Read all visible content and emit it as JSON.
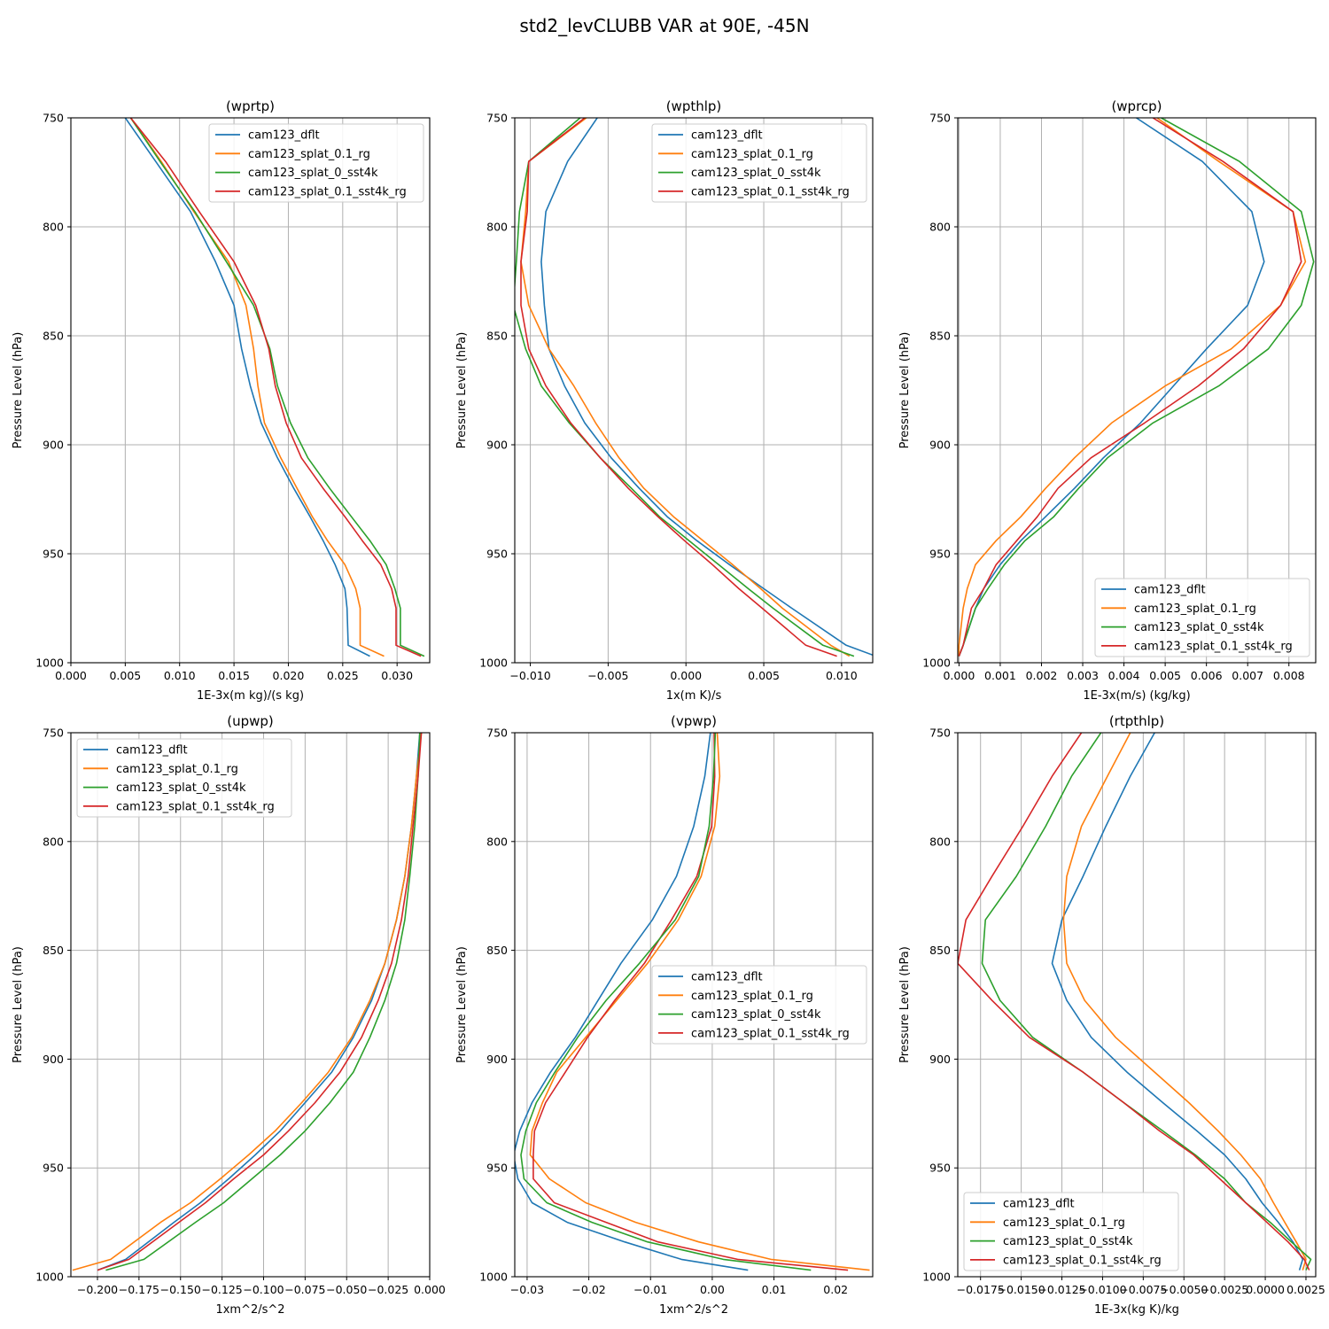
{
  "figure": {
    "title": "std2_levCLUBB VAR at 90E, -45N"
  },
  "legend_labels": [
    "cam123_dflt",
    "cam123_splat_0.1_rg",
    "cam123_splat_0_sst4k",
    "cam123_splat_0.1_sst4k_rg"
  ],
  "series_colors": [
    "#1f77b4",
    "#ff7f0e",
    "#2ca02c",
    "#d62728"
  ],
  "chart_data": [
    {
      "type": "line",
      "title": "(wprtp)",
      "xlabel": "1E-3x(m kg)/(s kg)",
      "ylabel": "Pressure Level (hPa)",
      "xlim": [
        0.0,
        0.033
      ],
      "ylim": [
        1000,
        750
      ],
      "xticks": [
        0.0,
        0.005,
        0.01,
        0.015,
        0.02,
        0.025,
        0.03
      ],
      "xtick_labels": [
        "0.000",
        "0.005",
        "0.010",
        "0.015",
        "0.020",
        "0.025",
        "0.030"
      ],
      "yticks": [
        750,
        800,
        850,
        900,
        950,
        1000
      ],
      "ytick_labels": [
        "750",
        "800",
        "850",
        "900",
        "950",
        "1000"
      ],
      "legend_loc": "upper right",
      "y": [
        750,
        770,
        793,
        816,
        836,
        856,
        873,
        890,
        906,
        920,
        933,
        944,
        955,
        966,
        975,
        992,
        997
      ],
      "series": [
        {
          "name": "cam123_dflt",
          "values": [
            0.005,
            0.0078,
            0.011,
            0.0133,
            0.015,
            0.0157,
            0.0165,
            0.0175,
            0.019,
            0.0205,
            0.022,
            0.0232,
            0.0243,
            0.0252,
            0.0254,
            0.0255,
            0.0275
          ]
        },
        {
          "name": "cam123_splat_0.1_rg",
          "values": [
            0.0055,
            0.0083,
            0.0113,
            0.0145,
            0.0161,
            0.0168,
            0.0172,
            0.0178,
            0.0193,
            0.0208,
            0.0222,
            0.0236,
            0.0252,
            0.0262,
            0.0266,
            0.0266,
            0.0288
          ]
        },
        {
          "name": "cam123_splat_0_sst4k",
          "values": [
            0.0055,
            0.0082,
            0.0114,
            0.0143,
            0.0168,
            0.0183,
            0.019,
            0.0202,
            0.0218,
            0.0238,
            0.0258,
            0.0275,
            0.029,
            0.0298,
            0.0303,
            0.0303,
            0.0325
          ]
        },
        {
          "name": "cam123_splat_0.1_sst4k_rg",
          "values": [
            0.0055,
            0.0087,
            0.0118,
            0.015,
            0.017,
            0.0182,
            0.0188,
            0.0198,
            0.0212,
            0.0232,
            0.0252,
            0.0268,
            0.0285,
            0.0295,
            0.0299,
            0.0299,
            0.0322
          ]
        }
      ]
    },
    {
      "type": "line",
      "title": "(wpthlp)",
      "xlabel": "1x(m K)/s",
      "ylabel": "Pressure Level (hPa)",
      "xlim": [
        -0.011,
        0.012
      ],
      "ylim": [
        1000,
        750
      ],
      "xticks": [
        -0.01,
        -0.005,
        0.0,
        0.005,
        0.01
      ],
      "xtick_labels": [
        "−0.010",
        "−0.005",
        "0.000",
        "0.005",
        "0.010"
      ],
      "yticks": [
        750,
        800,
        850,
        900,
        950,
        1000
      ],
      "ytick_labels": [
        "750",
        "800",
        "850",
        "900",
        "950",
        "1000"
      ],
      "legend_loc": "upper right",
      "y": [
        750,
        770,
        793,
        816,
        836,
        856,
        873,
        890,
        906,
        920,
        933,
        944,
        955,
        966,
        975,
        992,
        997
      ],
      "series": [
        {
          "name": "cam123_dflt",
          "values": [
            -0.0057,
            -0.0076,
            -0.009,
            -0.0093,
            -0.0091,
            -0.0088,
            -0.0078,
            -0.0065,
            -0.0048,
            -0.003,
            -0.0012,
            0.0007,
            0.0028,
            0.005,
            0.0068,
            0.0103,
            0.0122
          ]
        },
        {
          "name": "cam123_splat_0.1_rg",
          "values": [
            -0.0064,
            -0.0101,
            -0.0103,
            -0.0106,
            -0.0101,
            -0.0088,
            -0.0072,
            -0.0058,
            -0.0043,
            -0.0027,
            -0.0008,
            0.0011,
            0.003,
            0.0048,
            0.0062,
            0.0093,
            0.0105
          ]
        },
        {
          "name": "cam123_splat_0_sst4k",
          "values": [
            -0.0068,
            -0.0101,
            -0.0107,
            -0.0109,
            -0.0111,
            -0.0103,
            -0.0093,
            -0.0075,
            -0.0055,
            -0.0035,
            -0.0017,
            0.0002,
            0.0021,
            0.004,
            0.0056,
            0.0088,
            0.0108
          ]
        },
        {
          "name": "cam123_splat_0.1_sst4k_rg",
          "values": [
            -0.0065,
            -0.0101,
            -0.0102,
            -0.0106,
            -0.0106,
            -0.0101,
            -0.009,
            -0.0074,
            -0.0055,
            -0.0037,
            -0.0018,
            -0.0001,
            0.0017,
            0.0034,
            0.0049,
            0.0077,
            0.0097
          ]
        }
      ]
    },
    {
      "type": "line",
      "title": "(wprcp)",
      "xlabel": "1E-3x(m/s) (kg/kg)",
      "ylabel": "Pressure Level (hPa)",
      "xlim": [
        -3e-05,
        0.00865
      ],
      "ylim": [
        1000,
        750
      ],
      "xticks": [
        0.0,
        0.001,
        0.002,
        0.003,
        0.004,
        0.005,
        0.006,
        0.007,
        0.008
      ],
      "xtick_labels": [
        "0.000",
        "0.001",
        "0.002",
        "0.003",
        "0.004",
        "0.005",
        "0.006",
        "0.007",
        "0.008"
      ],
      "yticks": [
        750,
        800,
        850,
        900,
        950,
        1000
      ],
      "ytick_labels": [
        "750",
        "800",
        "850",
        "900",
        "950",
        "1000"
      ],
      "legend_loc": "lower right",
      "y": [
        750,
        770,
        793,
        816,
        836,
        856,
        873,
        890,
        906,
        920,
        933,
        944,
        955,
        966,
        975,
        992,
        997
      ],
      "series": [
        {
          "name": "cam123_dflt",
          "values": [
            0.0043,
            0.0059,
            0.0071,
            0.0074,
            0.007,
            0.006,
            0.0052,
            0.0044,
            0.0035,
            0.0028,
            0.0021,
            0.0015,
            0.001,
            0.0006,
            0.0004,
            0.0001,
            0.0
          ]
        },
        {
          "name": "cam123_splat_0.1_rg",
          "values": [
            0.0048,
            0.0063,
            0.0081,
            0.0084,
            0.0078,
            0.0066,
            0.005,
            0.0037,
            0.0028,
            0.0021,
            0.0015,
            0.0009,
            0.0004,
            0.0002,
            0.0001,
            0.0,
            0.0
          ]
        },
        {
          "name": "cam123_splat_0_sst4k",
          "values": [
            0.0049,
            0.0068,
            0.0083,
            0.0086,
            0.0083,
            0.0075,
            0.0063,
            0.0047,
            0.0036,
            0.0029,
            0.0023,
            0.0016,
            0.0011,
            0.0007,
            0.0004,
            0.0001,
            0.0
          ]
        },
        {
          "name": "cam123_splat_0.1_sst4k_rg",
          "values": [
            0.0047,
            0.0064,
            0.0081,
            0.0083,
            0.0078,
            0.0069,
            0.0058,
            0.0045,
            0.0032,
            0.0024,
            0.0019,
            0.0014,
            0.0009,
            0.0006,
            0.0003,
            0.0001,
            0.0
          ]
        }
      ]
    },
    {
      "type": "line",
      "title": "(upwp)",
      "xlabel": "1xm^2/s^2",
      "ylabel": "Pressure Level (hPa)",
      "xlim": [
        -0.216,
        0.0
      ],
      "ylim": [
        1000,
        750
      ],
      "xticks": [
        -0.2,
        -0.175,
        -0.15,
        -0.125,
        -0.1,
        -0.075,
        -0.05,
        -0.025,
        0.0
      ],
      "xtick_labels": [
        "−0.200",
        "−0.175",
        "−0.150",
        "−0.125",
        "−0.100",
        "−0.075",
        "−0.050",
        "−0.025",
        "0.000"
      ],
      "yticks": [
        750,
        800,
        850,
        900,
        950,
        1000
      ],
      "ytick_labels": [
        "750",
        "800",
        "850",
        "900",
        "950",
        "1000"
      ],
      "legend_loc": "upper left",
      "y": [
        750,
        770,
        793,
        816,
        836,
        856,
        873,
        890,
        906,
        920,
        933,
        944,
        955,
        966,
        975,
        992,
        997
      ],
      "series": [
        {
          "name": "cam123_dflt",
          "values": [
            -0.006,
            -0.008,
            -0.011,
            -0.015,
            -0.02,
            -0.027,
            -0.035,
            -0.046,
            -0.059,
            -0.075,
            -0.09,
            -0.105,
            -0.121,
            -0.138,
            -0.154,
            -0.183,
            -0.2
          ]
        },
        {
          "name": "cam123_splat_0.1_rg",
          "values": [
            -0.005,
            -0.008,
            -0.011,
            -0.015,
            -0.02,
            -0.027,
            -0.036,
            -0.047,
            -0.061,
            -0.077,
            -0.093,
            -0.109,
            -0.126,
            -0.144,
            -0.162,
            -0.192,
            -0.215
          ]
        },
        {
          "name": "cam123_splat_0_sst4k",
          "values": [
            -0.006,
            -0.007,
            -0.009,
            -0.012,
            -0.015,
            -0.02,
            -0.027,
            -0.036,
            -0.046,
            -0.06,
            -0.075,
            -0.09,
            -0.107,
            -0.124,
            -0.141,
            -0.172,
            -0.195
          ]
        },
        {
          "name": "cam123_splat_0.1_sst4k_rg",
          "values": [
            -0.005,
            -0.007,
            -0.01,
            -0.013,
            -0.017,
            -0.023,
            -0.031,
            -0.041,
            -0.054,
            -0.069,
            -0.085,
            -0.1,
            -0.118,
            -0.135,
            -0.151,
            -0.181,
            -0.2
          ]
        }
      ]
    },
    {
      "type": "line",
      "title": "(vpwp)",
      "xlabel": "1xm^2/s^2",
      "ylabel": "Pressure Level (hPa)",
      "xlim": [
        -0.032,
        0.026
      ],
      "ylim": [
        1000,
        750
      ],
      "xticks": [
        -0.03,
        -0.02,
        -0.01,
        0.0,
        0.01,
        0.02
      ],
      "xtick_labels": [
        "−0.03",
        "−0.02",
        "−0.01",
        "0.00",
        "0.01",
        "0.02"
      ],
      "yticks": [
        750,
        800,
        850,
        900,
        950,
        1000
      ],
      "ytick_labels": [
        "750",
        "800",
        "850",
        "900",
        "950",
        "1000"
      ],
      "legend_loc": "center right",
      "y": [
        750,
        770,
        793,
        816,
        836,
        856,
        873,
        890,
        906,
        920,
        933,
        944,
        955,
        966,
        975,
        984,
        992,
        997
      ],
      "series": [
        {
          "name": "cam123_dflt",
          "values": [
            -0.0003,
            -0.0012,
            -0.003,
            -0.0058,
            -0.0097,
            -0.0148,
            -0.0185,
            -0.0222,
            -0.0262,
            -0.0292,
            -0.0312,
            -0.0322,
            -0.0315,
            -0.0292,
            -0.0235,
            -0.0142,
            -0.005,
            0.0058
          ]
        },
        {
          "name": "cam123_splat_0.1_rg",
          "values": [
            0.0008,
            0.0012,
            0.0004,
            -0.0018,
            -0.0055,
            -0.0105,
            -0.0155,
            -0.0205,
            -0.0252,
            -0.0275,
            -0.0292,
            -0.0295,
            -0.0264,
            -0.0205,
            -0.0124,
            -0.0022,
            0.0095,
            0.0255
          ]
        },
        {
          "name": "cam123_splat_0.1_sst4k_rg",
          "values": [
            0.0003,
            0.0004,
            -0.0001,
            -0.0025,
            -0.0066,
            -0.011,
            -0.0158,
            -0.0202,
            -0.0238,
            -0.027,
            -0.0288,
            -0.029,
            -0.029,
            -0.0256,
            -0.0172,
            -0.0088,
            0.0041,
            0.022
          ]
        },
        {
          "name": "cam123_splat_0_sst4k",
          "values": [
            0.0005,
            0.0002,
            -0.0005,
            -0.0022,
            -0.006,
            -0.0118,
            -0.0172,
            -0.0218,
            -0.0255,
            -0.0285,
            -0.0302,
            -0.031,
            -0.0305,
            -0.0268,
            -0.0195,
            -0.0105,
            0.0018,
            0.016
          ]
        }
      ]
    },
    {
      "type": "line",
      "title": "(rtpthlp)",
      "xlabel": "1E-3x(kg K)/kg",
      "ylabel": "Pressure Level (hPa)",
      "xlim": [
        -0.0189,
        0.0031
      ],
      "ylim": [
        1000,
        750
      ],
      "xticks": [
        -0.0175,
        -0.015,
        -0.0125,
        -0.01,
        -0.0075,
        -0.005,
        -0.0025,
        0.0,
        0.0025
      ],
      "xtick_labels": [
        "−0.0175",
        "−0.0150",
        "−0.0125",
        "−0.0100",
        "−0.0075",
        "−0.0050",
        "−0.0025",
        "0.0000",
        "0.0025"
      ],
      "yticks": [
        750,
        800,
        850,
        900,
        950,
        1000
      ],
      "ytick_labels": [
        "750",
        "800",
        "850",
        "900",
        "950",
        "1000"
      ],
      "legend_loc": "lower left",
      "y": [
        750,
        770,
        793,
        816,
        836,
        856,
        873,
        890,
        906,
        920,
        933,
        944,
        955,
        966,
        975,
        984,
        992,
        997
      ],
      "series": [
        {
          "name": "cam123_dflt",
          "values": [
            -0.0068,
            -0.0083,
            -0.0098,
            -0.0112,
            -0.0125,
            -0.0131,
            -0.0122,
            -0.0107,
            -0.0085,
            -0.0063,
            -0.0042,
            -0.0025,
            -0.0012,
            -0.0002,
            0.0008,
            0.0017,
            0.0023,
            0.0021
          ]
        },
        {
          "name": "cam123_splat_0.1_rg",
          "values": [
            -0.0083,
            -0.0097,
            -0.0113,
            -0.0122,
            -0.0124,
            -0.0122,
            -0.0111,
            -0.0092,
            -0.0068,
            -0.0047,
            -0.0029,
            -0.0015,
            -0.0003,
            0.0005,
            0.0012,
            0.0019,
            0.0025,
            0.0023
          ]
        },
        {
          "name": "cam123_splat_0_sst4k",
          "values": [
            -0.0101,
            -0.0119,
            -0.0135,
            -0.0153,
            -0.0172,
            -0.0174,
            -0.0163,
            -0.0143,
            -0.0112,
            -0.0087,
            -0.0063,
            -0.0043,
            -0.0025,
            -0.0012,
            0.0003,
            0.0016,
            0.0028,
            0.0025
          ]
        },
        {
          "name": "cam123_splat_0.1_sst4k_rg",
          "values": [
            -0.0113,
            -0.0131,
            -0.0149,
            -0.0168,
            -0.0184,
            -0.0189,
            -0.0168,
            -0.0145,
            -0.0112,
            -0.0087,
            -0.0065,
            -0.0044,
            -0.0028,
            -0.0012,
            0.0001,
            0.0014,
            0.0024,
            0.0027
          ]
        }
      ]
    }
  ]
}
